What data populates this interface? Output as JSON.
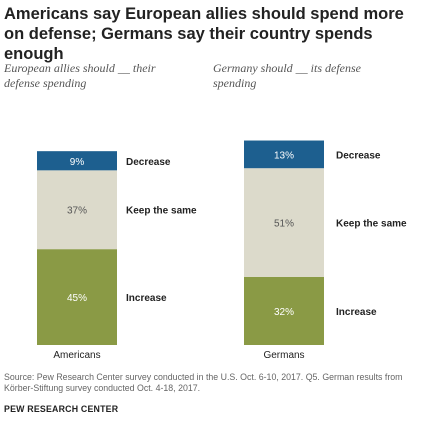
{
  "title": "Americans say European allies should spend more on defense; Germans say their country spends enough",
  "panels": [
    {
      "subtitle": "European allies should __ their defense spending",
      "label": "Americans"
    },
    {
      "subtitle": "Germany should __ its defense spending",
      "label": "Germans"
    }
  ],
  "chart_data": {
    "type": "bar",
    "stacked": true,
    "categories": [
      "Americans",
      "Germans"
    ],
    "series": [
      {
        "name": "Increase",
        "values": [
          45,
          32
        ],
        "labels": [
          "45%",
          "32%"
        ],
        "color": "#8a9a45"
      },
      {
        "name": "Keep the same",
        "values": [
          37,
          51
        ],
        "labels": [
          "37%",
          "51%"
        ],
        "color": "#dcdacb"
      },
      {
        "name": "Decrease",
        "values": [
          9,
          13
        ],
        "labels": [
          "9%",
          "13%"
        ],
        "color": "#1d5f8f"
      }
    ]
  },
  "colors": {
    "increase": "#8a9a45",
    "keep": "#dcdacb",
    "decrease": "#1d5f8f"
  },
  "source": "Source: Pew Research Center survey conducted in the U.S. Oct. 6-10, 2017. Q5. German results from Körber-Stiftung survey conducted Oct. 4-18, 2017.",
  "brand": "PEW RESEARCH CENTER"
}
